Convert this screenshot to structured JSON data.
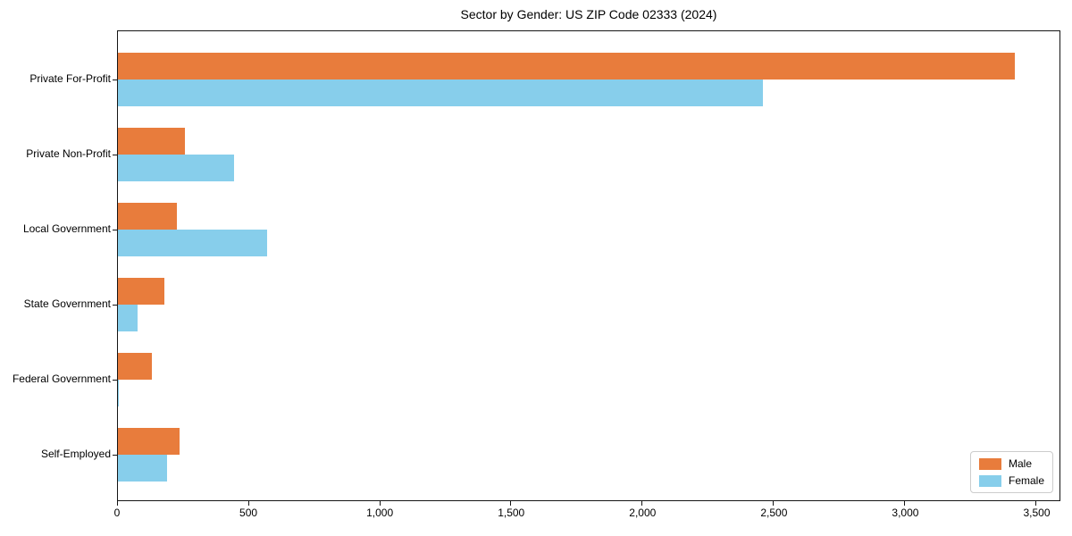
{
  "title": "Sector by Gender: US ZIP Code 02333 (2024)",
  "chart_data": {
    "type": "bar",
    "orientation": "horizontal",
    "title": "Sector by Gender: US ZIP Code 02333 (2024)",
    "xlabel": "",
    "ylabel": "",
    "categories": [
      "Private For-Profit",
      "Private Non-Profit",
      "Local Government",
      "State Government",
      "Federal Government",
      "Self-Employed"
    ],
    "series": [
      {
        "name": "Male",
        "color": "#E87C3C",
        "values": [
          3420,
          256,
          225,
          178,
          131,
          235
        ]
      },
      {
        "name": "Female",
        "color": "#87CEEB",
        "values": [
          2460,
          444,
          570,
          75,
          4,
          187
        ]
      }
    ],
    "xlim": [
      0,
      3590
    ],
    "x_ticks": [
      0,
      500,
      1000,
      1500,
      2000,
      2500,
      3000,
      3500
    ],
    "x_tick_labels": [
      "0",
      "500",
      "1,000",
      "1,500",
      "2,000",
      "2,500",
      "3,000",
      "3,500"
    ],
    "grid": false,
    "legend": {
      "position": "lower right",
      "entries": [
        "Male",
        "Female"
      ]
    },
    "colors": {
      "male": "#E87C3C",
      "female": "#87CEEB",
      "spine": "#151515",
      "legend_border": "#cccccc",
      "background": "#ffffff"
    }
  }
}
